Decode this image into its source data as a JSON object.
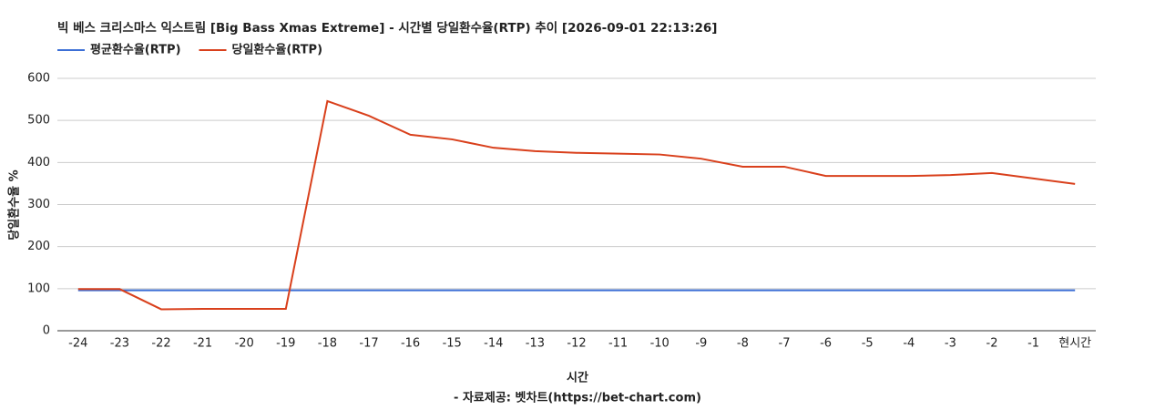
{
  "chart_data": {
    "type": "line",
    "title": "빅 베스 크리스마스 익스트림 [Big Bass Xmas Extreme] - 시간별 당일환수율(RTP) 추이 [2026-09-01 22:13:26]",
    "x_label": "시간",
    "y_label": "당일환수율 %",
    "source": "- 자료제공: 벳차트(https://bet-chart.com)",
    "categories": [
      "-24",
      "-23",
      "-22",
      "-21",
      "-20",
      "-19",
      "-18",
      "-17",
      "-16",
      "-15",
      "-14",
      "-13",
      "-12",
      "-11",
      "-10",
      "-9",
      "-8",
      "-7",
      "-6",
      "-5",
      "-4",
      "-3",
      "-2",
      "-1",
      "현시간"
    ],
    "series": [
      {
        "name": "평균환수율(RTP)",
        "color": "#3c6fd6",
        "values": [
          96,
          96,
          96,
          96,
          96,
          96,
          96,
          96,
          96,
          96,
          96,
          96,
          96,
          96,
          96,
          96,
          96,
          96,
          96,
          96,
          96,
          96,
          96,
          96,
          96
        ]
      },
      {
        "name": "당일환수율(RTP)",
        "color": "#d9401c",
        "values": [
          99,
          99,
          51,
          52,
          52,
          52,
          546,
          511,
          466,
          455,
          435,
          427,
          423,
          421,
          419,
          409,
          390,
          390,
          368,
          368,
          368,
          370,
          375,
          362,
          349
        ]
      }
    ],
    "ylim": [
      0,
      600
    ],
    "yticks": [
      0,
      100,
      200,
      300,
      400,
      500,
      600
    ],
    "grid": true
  }
}
